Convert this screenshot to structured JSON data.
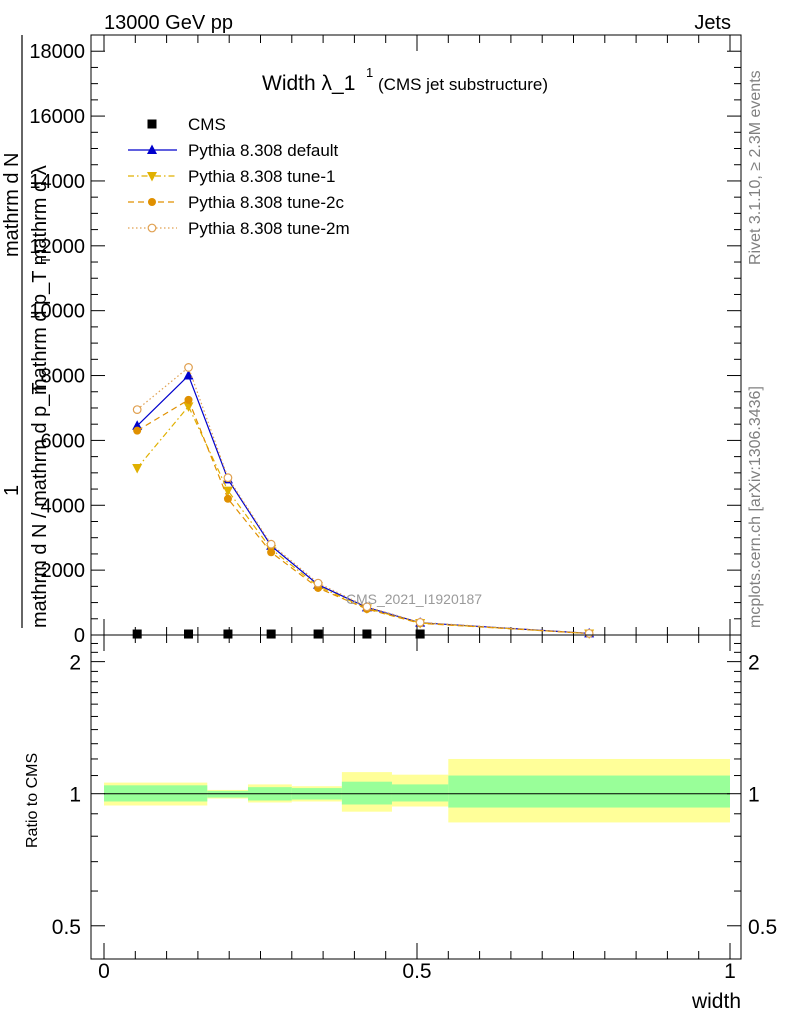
{
  "header": {
    "energy_label": "13000 GeV pp",
    "process_label": "Jets",
    "rivet_label": "Rivet 3.1.10, ≥ 2.3M events",
    "mcplots_label": "mcplots.cern.ch [arXiv:1306.3436]",
    "watermark": "CMS_2021_I1920187"
  },
  "chart_data": [
    {
      "type": "line",
      "title": "Width λ_1",
      "title_superscript": "1",
      "subtitle": "(CMS jet substructure)",
      "xlabel": "width",
      "ylabel_lines": [
        "mathrm d N",
        "mathrm d p_T mathrm d λ",
        "1",
        "mathrm d N / mathrm d p_T"
      ],
      "ylabel_sub": "T",
      "ylim": [
        0,
        18500
      ],
      "yticks": [
        0,
        2000,
        4000,
        6000,
        8000,
        10000,
        12000,
        14000,
        16000,
        18000
      ],
      "ytick_labels": [
        "0",
        "2000",
        "4000",
        "6000",
        "8000",
        "10000",
        "12000",
        "14000",
        "16000",
        "18000"
      ],
      "xlim": [
        0,
        1
      ],
      "legend_position": "top-left",
      "series": [
        {
          "name": "CMS",
          "color": "#000000",
          "marker": "square",
          "line": "none",
          "x": [
            0.053,
            0.135,
            0.198,
            0.267,
            0.342,
            0.42,
            0.505
          ],
          "y": [
            30,
            30,
            30,
            30,
            30,
            30,
            30
          ]
        },
        {
          "name": "Pythia 8.308 default",
          "color": "#0000cc",
          "marker": "triangle-up",
          "line": "solid",
          "x": [
            0.053,
            0.135,
            0.198,
            0.267,
            0.342,
            0.42,
            0.505,
            0.775
          ],
          "y": [
            6450,
            8000,
            4800,
            2750,
            1550,
            850,
            380,
            50
          ]
        },
        {
          "name": "Pythia 8.308 tune-1",
          "color": "#e0b000",
          "marker": "triangle-down",
          "line": "dashdot",
          "x": [
            0.053,
            0.135,
            0.198,
            0.267,
            0.342,
            0.42,
            0.505,
            0.775
          ],
          "y": [
            5150,
            7050,
            4450,
            2650,
            1500,
            820,
            370,
            45
          ]
        },
        {
          "name": "Pythia 8.308 tune-2c",
          "color": "#e09000",
          "marker": "circle",
          "line": "dashed",
          "x": [
            0.053,
            0.135,
            0.198,
            0.267,
            0.342,
            0.42,
            0.505,
            0.775
          ],
          "y": [
            6300,
            7250,
            4200,
            2550,
            1450,
            800,
            360,
            45
          ]
        },
        {
          "name": "Pythia 8.308 tune-2m",
          "color": "#e0a050",
          "marker": "circle-open",
          "line": "dotted",
          "x": [
            0.053,
            0.135,
            0.198,
            0.267,
            0.342,
            0.42,
            0.505,
            0.775
          ],
          "y": [
            6950,
            8250,
            4850,
            2800,
            1600,
            870,
            390,
            50
          ]
        }
      ]
    },
    {
      "type": "area",
      "ylabel": "Ratio to CMS",
      "xlabel": "width",
      "xlim": [
        0,
        1
      ],
      "xticks": [
        0,
        0.5,
        1
      ],
      "xtick_labels": [
        "0",
        "0.5",
        "1"
      ],
      "ylim": [
        0.42,
        2.3
      ],
      "yscale": "log",
      "yticks": [
        0.5,
        1,
        2
      ],
      "ytick_labels": [
        "0.5",
        "1",
        "2"
      ],
      "reference_line": 1,
      "bands": [
        {
          "x0": 0.0,
          "x1": 0.165,
          "inner": [
            0.96,
            1.045
          ],
          "outer": [
            0.94,
            1.06
          ]
        },
        {
          "x0": 0.165,
          "x1": 0.23,
          "inner": [
            0.98,
            1.015
          ],
          "outer": [
            0.975,
            1.02
          ]
        },
        {
          "x0": 0.23,
          "x1": 0.3,
          "inner": [
            0.965,
            1.035
          ],
          "outer": [
            0.955,
            1.05
          ]
        },
        {
          "x0": 0.3,
          "x1": 0.38,
          "inner": [
            0.97,
            1.03
          ],
          "outer": [
            0.96,
            1.04
          ]
        },
        {
          "x0": 0.38,
          "x1": 0.46,
          "inner": [
            0.945,
            1.065
          ],
          "outer": [
            0.91,
            1.12
          ]
        },
        {
          "x0": 0.46,
          "x1": 0.55,
          "inner": [
            0.96,
            1.05
          ],
          "outer": [
            0.935,
            1.105
          ]
        },
        {
          "x0": 0.55,
          "x1": 1.0,
          "inner": [
            0.93,
            1.1
          ],
          "outer": [
            0.86,
            1.2
          ]
        }
      ],
      "inner_color": "#99ff99",
      "outer_color": "#ffff99"
    }
  ]
}
